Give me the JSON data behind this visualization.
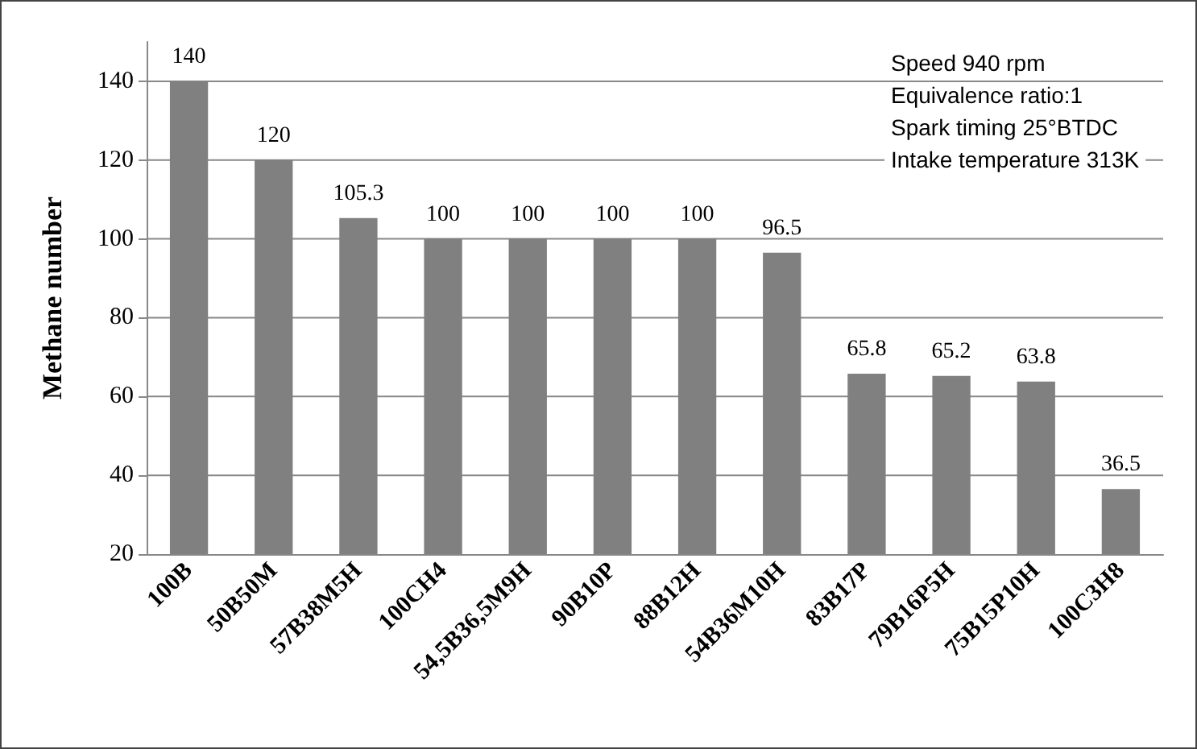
{
  "chart_data": {
    "type": "bar",
    "ylabel": "Methane number",
    "categories": [
      "100B",
      "50B50M",
      "57B38M5H",
      "100CH4",
      "54,5B36,5M9H",
      "90B10P",
      "88B12H",
      "54B36M10H",
      "83B17P",
      "79B16P5H",
      "75B15P10H",
      "100C3H8"
    ],
    "values": [
      140,
      120,
      105.3,
      100,
      100,
      100,
      100,
      96.5,
      65.8,
      65.2,
      63.8,
      36.5
    ],
    "color": "#808080",
    "ylim": [
      20,
      150
    ],
    "yticks": [
      20,
      40,
      60,
      80,
      100,
      120,
      140
    ],
    "grid": "y",
    "data_labels": true,
    "annotations": [
      "Speed 940 rpm",
      "Equivalence ratio:1",
      "Spark timing 25°BTDC",
      "Intake temperature 313K"
    ]
  }
}
